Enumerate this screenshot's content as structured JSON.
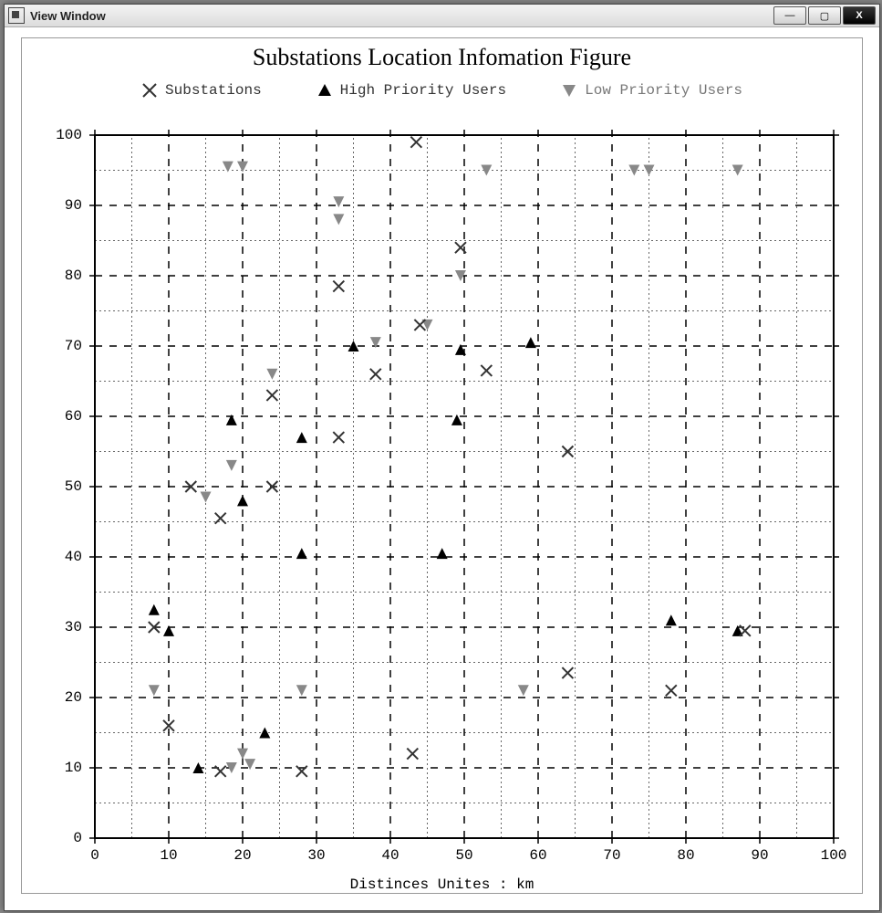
{
  "window": {
    "title": "View Window",
    "buttons": {
      "min": "—",
      "max": "▢",
      "close": "X"
    }
  },
  "chart": {
    "type": "scatter",
    "title": "Substations Location Infomation Figure",
    "title_fontfamily": "Georgia, 'Times New Roman', serif",
    "title_fontsize": 26,
    "x_axis_title": "Distinces Unites : km",
    "axis_fontfamily": "'Courier New', monospace",
    "axis_fontsize": 16,
    "xlim": [
      0,
      100
    ],
    "ylim": [
      0,
      100
    ],
    "xtick_step": 10,
    "ytick_step": 10,
    "minor_step": 5,
    "background_color": "#ffffff",
    "frame_color": "#000000",
    "major_grid_color": "#000000",
    "major_grid_dash": "8 8",
    "minor_grid_color": "#666666",
    "minor_grid_style": "dotted",
    "marker_size": 12,
    "tick_len": 6,
    "legend": {
      "items": [
        {
          "key": "substations",
          "label": "Substations",
          "marker": "x",
          "color": "#333333"
        },
        {
          "key": "high",
          "label": "High Priority Users",
          "marker": "triangle-up",
          "color": "#000000"
        },
        {
          "key": "low",
          "label": "Low Priority Users",
          "marker": "triangle-down",
          "color": "#888888"
        }
      ]
    },
    "series": {
      "substations": {
        "marker": "x",
        "color": "#333333",
        "stroke_width": 2,
        "points": [
          [
            8,
            30
          ],
          [
            10,
            16
          ],
          [
            13,
            50
          ],
          [
            17,
            9.5
          ],
          [
            17,
            45.5
          ],
          [
            24,
            50
          ],
          [
            24,
            63
          ],
          [
            28,
            9.5
          ],
          [
            33,
            78.5
          ],
          [
            33,
            57
          ],
          [
            38,
            66
          ],
          [
            43.5,
            99
          ],
          [
            43,
            12
          ],
          [
            44,
            73
          ],
          [
            49.5,
            84
          ],
          [
            53,
            66.5
          ],
          [
            64,
            55
          ],
          [
            64,
            23.5
          ],
          [
            78,
            21
          ],
          [
            88,
            29.5
          ]
        ]
      },
      "high": {
        "marker": "triangle-up",
        "color": "#000000",
        "points": [
          [
            8,
            32.5
          ],
          [
            10,
            29.5
          ],
          [
            14,
            10
          ],
          [
            18.5,
            59.5
          ],
          [
            20,
            48
          ],
          [
            23,
            15
          ],
          [
            28,
            40.5
          ],
          [
            28,
            57
          ],
          [
            35,
            70
          ],
          [
            47,
            40.5
          ],
          [
            49,
            59.5
          ],
          [
            49.5,
            69.5
          ],
          [
            59,
            70.5
          ],
          [
            78,
            31
          ],
          [
            87,
            29.5
          ]
        ]
      },
      "low": {
        "marker": "triangle-down",
        "color": "#888888",
        "points": [
          [
            8,
            21
          ],
          [
            15,
            48.5
          ],
          [
            18,
            95.5
          ],
          [
            18.5,
            10
          ],
          [
            18.5,
            53
          ],
          [
            20,
            12
          ],
          [
            20,
            95.5
          ],
          [
            21,
            10.5
          ],
          [
            24,
            66
          ],
          [
            28,
            21
          ],
          [
            33,
            90.5
          ],
          [
            33,
            88
          ],
          [
            38,
            70.5
          ],
          [
            45,
            73
          ],
          [
            49.5,
            80
          ],
          [
            53,
            95
          ],
          [
            58,
            21
          ],
          [
            73,
            95
          ],
          [
            75,
            95
          ],
          [
            87,
            95
          ]
        ]
      }
    }
  }
}
